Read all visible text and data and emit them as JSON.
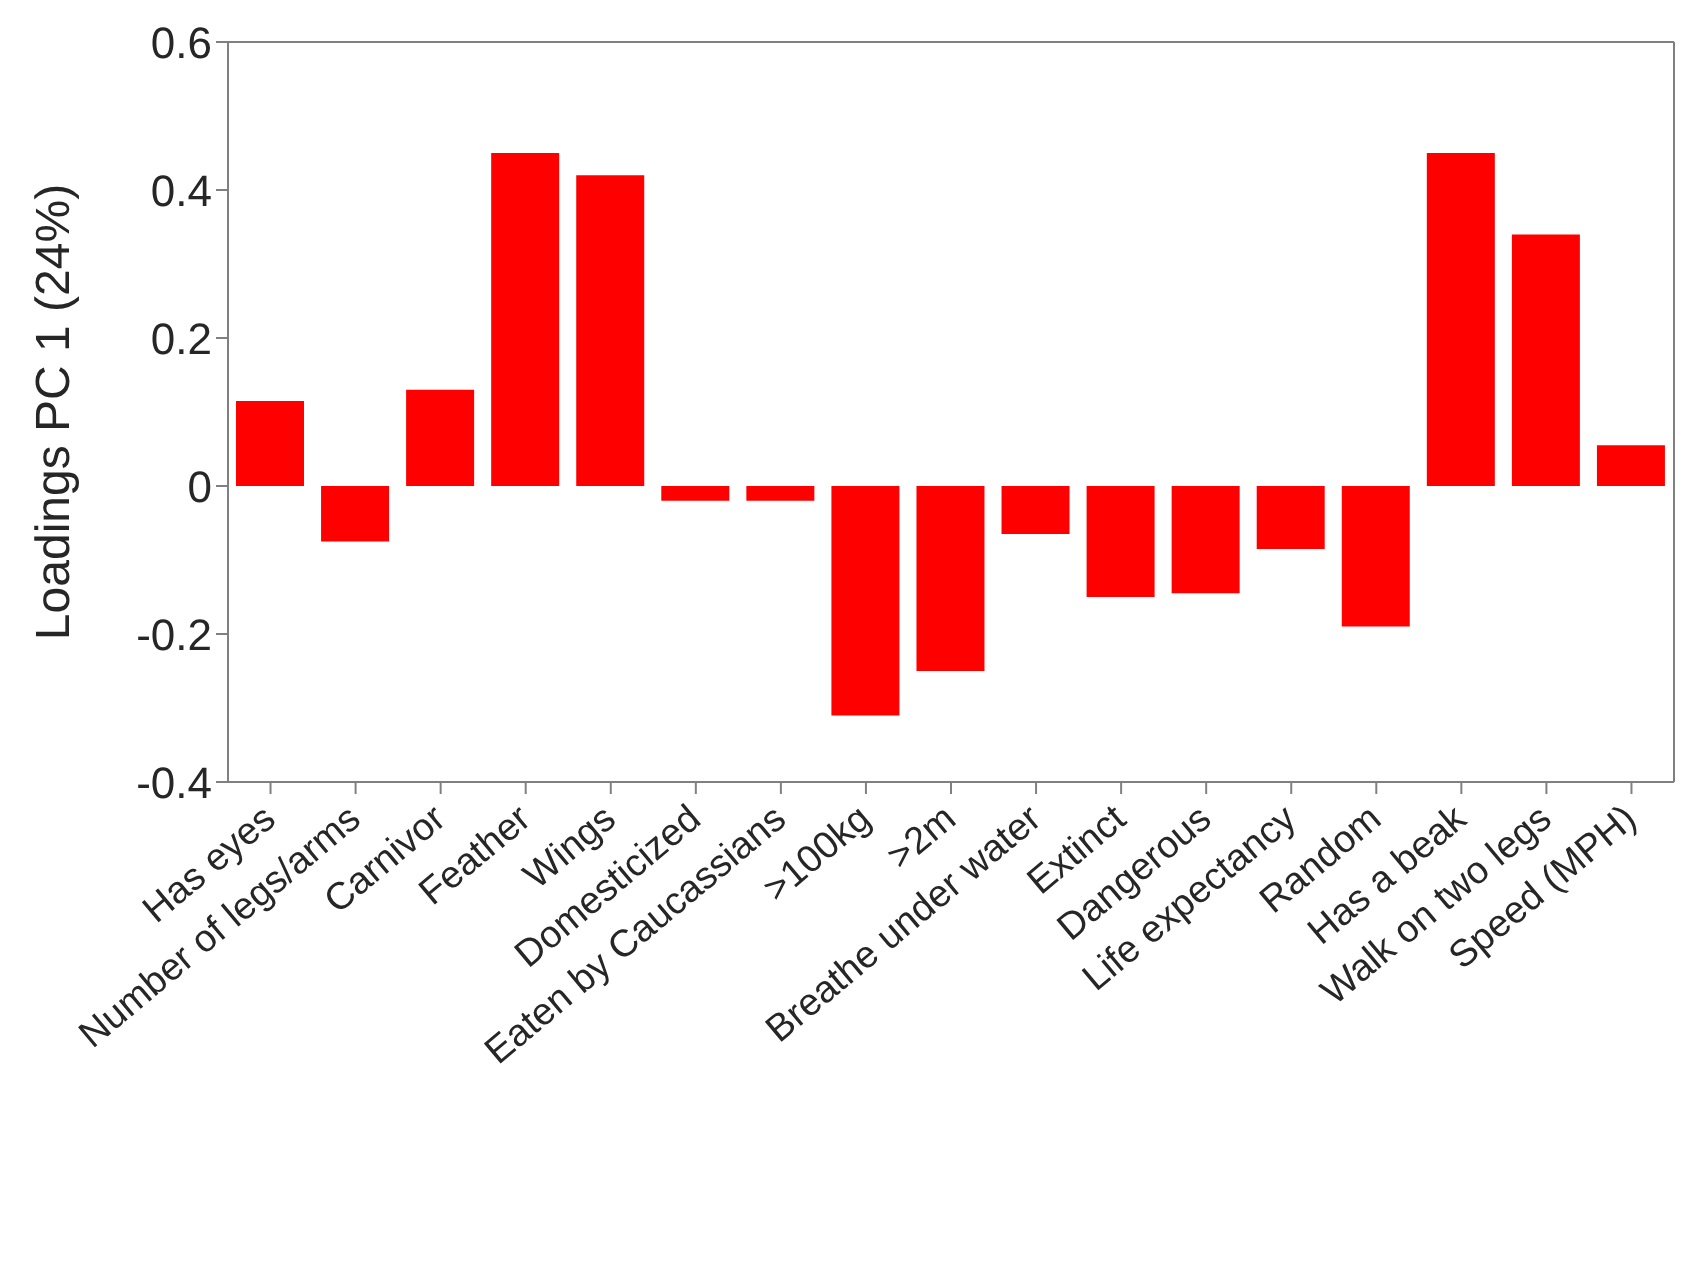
{
  "chart_data": {
    "type": "bar",
    "ylabel": "Loadings PC 1 (24%)",
    "categories": [
      "Has eyes",
      "Number of legs/arms",
      "Carnivor",
      "Feather",
      "Wings",
      "Domesticized",
      "Eaten by Caucassians",
      ">100kg",
      ">2m",
      "Breathe under water",
      "Extinct",
      "Dangerous",
      "Life expectancy",
      "Random",
      "Has a beak",
      "Walk on two legs",
      "Speed (MPH)"
    ],
    "values": [
      0.115,
      -0.075,
      0.13,
      0.45,
      0.42,
      -0.02,
      -0.02,
      -0.31,
      -0.25,
      -0.065,
      -0.15,
      -0.145,
      -0.085,
      -0.19,
      0.45,
      0.34,
      0.055
    ],
    "color": "#ff0000",
    "ylim": [
      -0.4,
      0.6
    ],
    "yticks": [
      -0.4,
      -0.2,
      0,
      0.2,
      0.4,
      0.6
    ],
    "grid": false,
    "legend": false
  }
}
